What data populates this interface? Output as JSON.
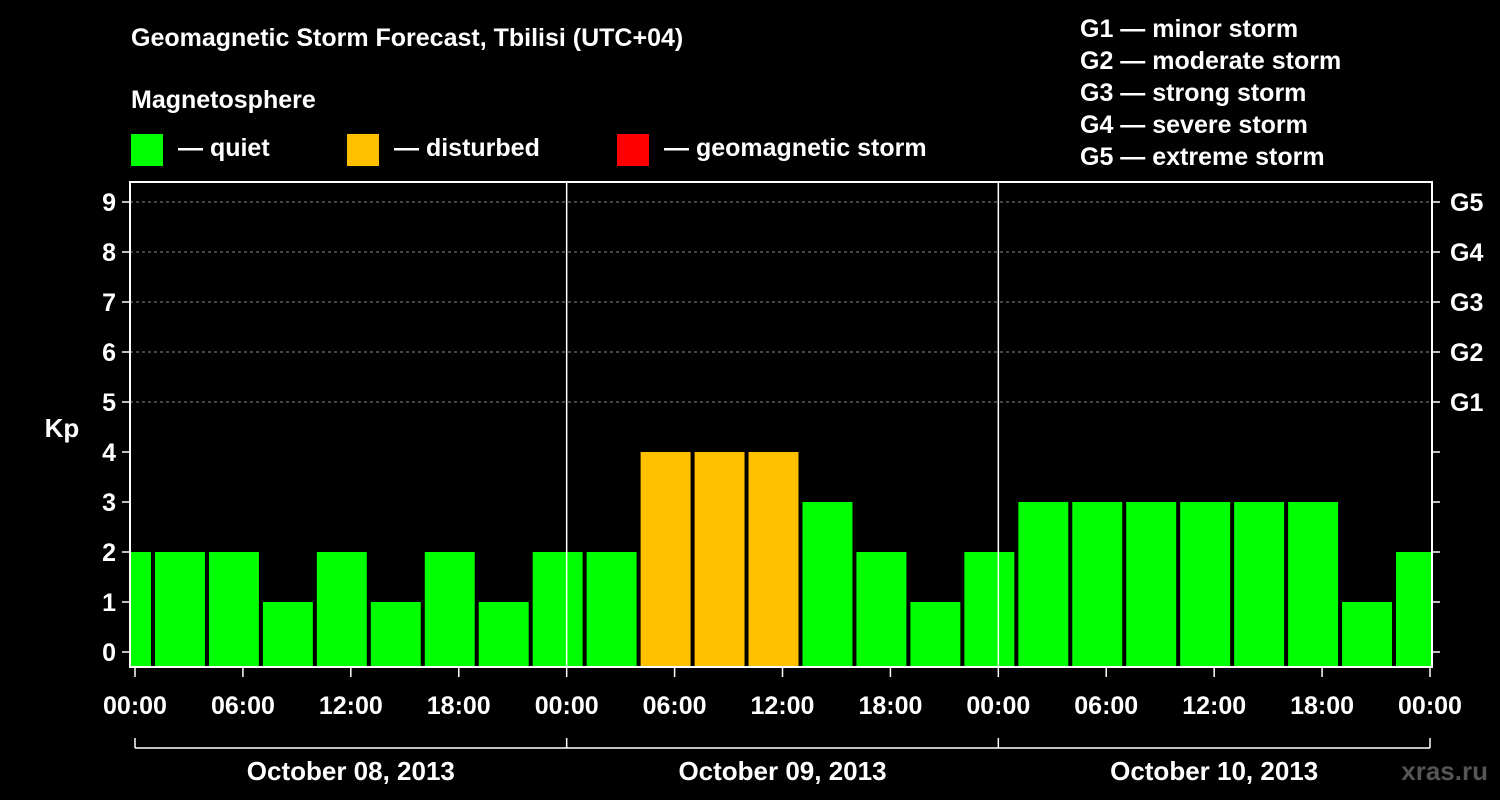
{
  "header": {
    "title": "Geomagnetic Storm Forecast, Tbilisi (UTC+04)",
    "section_label": "Magnetosphere"
  },
  "legend": {
    "items": [
      {
        "label": "— quiet",
        "color": "#00ff00"
      },
      {
        "label": "— disturbed",
        "color": "#ffc000"
      },
      {
        "label": "— geomagnetic storm",
        "color": "#ff0000"
      }
    ]
  },
  "storm_levels": [
    "G1 — minor storm",
    "G2 — moderate storm",
    "G3 — strong storm",
    "G4 — severe storm",
    "G5 — extreme storm"
  ],
  "watermark": "xras.ru",
  "chart_data": {
    "type": "bar",
    "title": "Geomagnetic Storm Forecast, Tbilisi (UTC+04)",
    "ylabel": "Kp",
    "ylim": [
      0,
      9
    ],
    "y_ticks": [
      "0",
      "1",
      "2",
      "3",
      "4",
      "5",
      "6",
      "7",
      "8",
      "9"
    ],
    "right_axis_labels": [
      {
        "kp": 5,
        "label": "G1"
      },
      {
        "kp": 6,
        "label": "G2"
      },
      {
        "kp": 7,
        "label": "G3"
      },
      {
        "kp": 8,
        "label": "G4"
      },
      {
        "kp": 9,
        "label": "G5"
      }
    ],
    "x_tick_labels": [
      "00:00",
      "06:00",
      "12:00",
      "18:00",
      "00:00",
      "06:00",
      "12:00",
      "18:00",
      "00:00",
      "06:00",
      "12:00",
      "18:00",
      "00:00"
    ],
    "x_range_hours": [
      0,
      72
    ],
    "days": [
      "October 08, 2013",
      "October 09, 2013",
      "October 10, 2013"
    ],
    "bar_width_hours": 3,
    "bars": [
      {
        "start": -1,
        "end": 1,
        "kp": 2,
        "level": "quiet"
      },
      {
        "start": 1,
        "end": 4,
        "kp": 2,
        "level": "quiet"
      },
      {
        "start": 4,
        "end": 7,
        "kp": 2,
        "level": "quiet"
      },
      {
        "start": 7,
        "end": 10,
        "kp": 1,
        "level": "quiet"
      },
      {
        "start": 10,
        "end": 13,
        "kp": 2,
        "level": "quiet"
      },
      {
        "start": 13,
        "end": 16,
        "kp": 1,
        "level": "quiet"
      },
      {
        "start": 16,
        "end": 19,
        "kp": 2,
        "level": "quiet"
      },
      {
        "start": 19,
        "end": 22,
        "kp": 1,
        "level": "quiet"
      },
      {
        "start": 22,
        "end": 25,
        "kp": 2,
        "level": "quiet"
      },
      {
        "start": 25,
        "end": 28,
        "kp": 2,
        "level": "quiet"
      },
      {
        "start": 28,
        "end": 31,
        "kp": 4,
        "level": "disturbed"
      },
      {
        "start": 31,
        "end": 34,
        "kp": 4,
        "level": "disturbed"
      },
      {
        "start": 34,
        "end": 37,
        "kp": 4,
        "level": "disturbed"
      },
      {
        "start": 37,
        "end": 40,
        "kp": 3,
        "level": "quiet"
      },
      {
        "start": 40,
        "end": 43,
        "kp": 2,
        "level": "quiet"
      },
      {
        "start": 43,
        "end": 46,
        "kp": 1,
        "level": "quiet"
      },
      {
        "start": 46,
        "end": 49,
        "kp": 2,
        "level": "quiet"
      },
      {
        "start": 49,
        "end": 52,
        "kp": 3,
        "level": "quiet"
      },
      {
        "start": 52,
        "end": 55,
        "kp": 3,
        "level": "quiet"
      },
      {
        "start": 55,
        "end": 58,
        "kp": 3,
        "level": "quiet"
      },
      {
        "start": 58,
        "end": 61,
        "kp": 3,
        "level": "quiet"
      },
      {
        "start": 61,
        "end": 64,
        "kp": 3,
        "level": "quiet"
      },
      {
        "start": 64,
        "end": 67,
        "kp": 3,
        "level": "quiet"
      },
      {
        "start": 67,
        "end": 70,
        "kp": 1,
        "level": "quiet"
      },
      {
        "start": 70,
        "end": 73,
        "kp": 2,
        "level": "quiet"
      }
    ],
    "level_colors": {
      "quiet": "#00ff00",
      "disturbed": "#ffc000",
      "storm": "#ff0000"
    }
  }
}
